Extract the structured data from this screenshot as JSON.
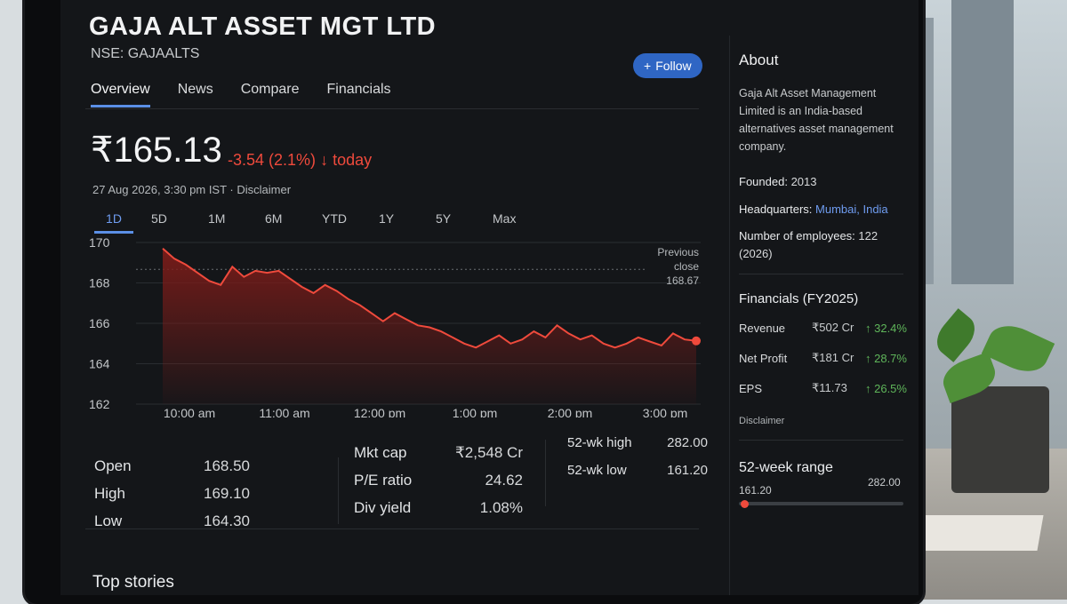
{
  "company": {
    "name": "GAJA ALT ASSET MGT LTD",
    "ticker": "NSE: GAJAALTS"
  },
  "follow": {
    "icon": "plus-icon",
    "label": "Follow"
  },
  "tabs": [
    {
      "label": "Overview",
      "active": true
    },
    {
      "label": "News",
      "active": false
    },
    {
      "label": "Compare",
      "active": false
    },
    {
      "label": "Financials",
      "active": false
    }
  ],
  "quote": {
    "price": "₹165.13",
    "change": "-3.54 (2.1%)",
    "change_icon": "arrow-down-icon",
    "change_suffix": "today",
    "timestamp": "27 Aug 2026, 3:30 pm IST · Disclaimer"
  },
  "ranges": [
    {
      "label": "1D",
      "active": true
    },
    {
      "label": "5D",
      "active": false
    },
    {
      "label": "1M",
      "active": false
    },
    {
      "label": "6M",
      "active": false
    },
    {
      "label": "YTD",
      "active": false
    },
    {
      "label": "1Y",
      "active": false
    },
    {
      "label": "5Y",
      "active": false
    },
    {
      "label": "Max",
      "active": false
    }
  ],
  "chart_data": {
    "type": "area",
    "x_ticks": [
      "10:00 am",
      "11:00 am",
      "12:00 pm",
      "1:00 pm",
      "2:00 pm",
      "3:00 pm"
    ],
    "y_ticks": [
      "170",
      "168",
      "166",
      "164",
      "162"
    ],
    "ylim": [
      162,
      170
    ],
    "previous_close": {
      "label_lines": [
        "Previous",
        "close",
        "168.67"
      ],
      "value": 168.67
    },
    "series": [
      {
        "color": "#ef4a3c",
        "values": [
          169.7,
          169.2,
          168.9,
          168.5,
          168.1,
          167.9,
          168.8,
          168.3,
          168.6,
          168.5,
          168.6,
          168.2,
          167.8,
          167.5,
          167.9,
          167.6,
          167.2,
          166.9,
          166.5,
          166.1,
          166.5,
          166.2,
          165.9,
          165.8,
          165.6,
          165.3,
          165.0,
          164.8,
          165.1,
          165.4,
          165.0,
          165.2,
          165.6,
          165.3,
          165.9,
          165.5,
          165.2,
          165.4,
          165.0,
          164.8,
          165.0,
          165.3,
          165.1,
          164.9,
          165.5,
          165.2,
          165.13
        ]
      }
    ],
    "grid": true,
    "line_color": "#ef4a3c",
    "fill_color": "#7a1c19"
  },
  "stats": {
    "col1": [
      {
        "label": "Open",
        "value": "168.50"
      },
      {
        "label": "High",
        "value": "169.10"
      },
      {
        "label": "Low",
        "value": "164.30"
      }
    ],
    "col2": [
      {
        "label": "Mkt cap",
        "value": "₹2,548 Cr"
      },
      {
        "label": "P/E ratio",
        "value": "24.62"
      },
      {
        "label": "Div yield",
        "value": "1.08%"
      }
    ],
    "col3": [
      {
        "label": "52-wk high",
        "value": "282.00"
      },
      {
        "label": "52-wk low",
        "value": "161.20"
      }
    ]
  },
  "top_stories": "Top stories",
  "about": {
    "title": "About",
    "description": "Gaja Alt Asset Management Limited is an India-based alternatives asset management company.",
    "founded_label": "Founded:",
    "founded_value": "2013",
    "hq_label": "Headquarters:",
    "hq_value": "Mumbai, India",
    "employees_label": "Number of employees:",
    "employees_value": "122 (2026)"
  },
  "financials": {
    "title": "Financials (FY2025)",
    "rows": [
      {
        "label": "Revenue",
        "value": "₹502 Cr",
        "change": "↑ 32.4%"
      },
      {
        "label": "Net Profit",
        "value": "₹181 Cr",
        "change": "↑ 28.7%"
      },
      {
        "label": "EPS",
        "value": "₹11.73",
        "change": "↑ 26.5%"
      }
    ],
    "disclaimer": "Disclaimer"
  },
  "week52": {
    "title": "52-week range",
    "low": "161.20",
    "high": "282.00",
    "current_fraction": 0.03
  }
}
